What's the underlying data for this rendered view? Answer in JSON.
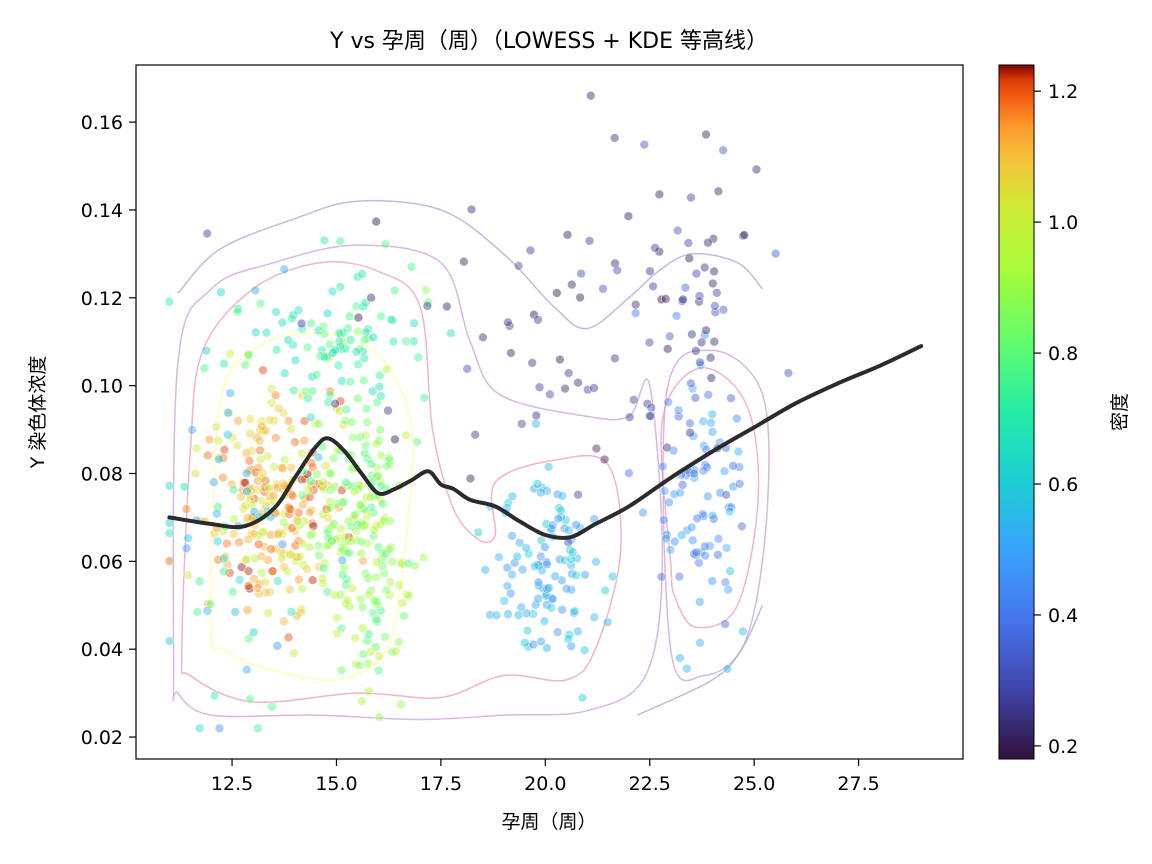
{
  "chart_data": {
    "type": "scatter",
    "title": "Y vs 孕周（周）（LOWESS + KDE 等高线）",
    "xlabel": "孕周（周）",
    "ylabel": "Y 染色体浓度",
    "xlim": [
      10.2,
      30.0
    ],
    "ylim": [
      0.015,
      0.173
    ],
    "x_ticks": [
      12.5,
      15.0,
      17.5,
      20.0,
      22.5,
      25.0,
      27.5
    ],
    "x_tick_labels": [
      "12.5",
      "15.0",
      "17.5",
      "20.0",
      "22.5",
      "25.0",
      "27.5"
    ],
    "y_ticks": [
      0.02,
      0.04,
      0.06,
      0.08,
      0.1,
      0.12,
      0.14,
      0.16
    ],
    "y_tick_labels": [
      "0.02",
      "0.04",
      "0.06",
      "0.08",
      "0.10",
      "0.12",
      "0.14",
      "0.16"
    ],
    "colorbar": {
      "label": "密度",
      "range": [
        0.18,
        1.24
      ],
      "ticks": [
        0.2,
        0.4,
        0.6,
        0.8,
        1.0,
        1.2
      ],
      "tick_labels": [
        "0.2",
        "0.4",
        "0.6",
        "0.8",
        "1.0",
        "1.2"
      ],
      "colormap": "turbo"
    },
    "clusters": [
      {
        "x_center": 13.5,
        "y_center": 0.072,
        "x_spread": 1.1,
        "y_spread": 0.017,
        "count": 240,
        "density": [
          0.95,
          1.24
        ]
      },
      {
        "x_center": 15.6,
        "y_center": 0.066,
        "x_spread": 0.8,
        "y_spread": 0.022,
        "count": 200,
        "density": [
          0.75,
          1.0
        ]
      },
      {
        "x_center": 15.0,
        "y_center": 0.11,
        "x_spread": 1.4,
        "y_spread": 0.012,
        "count": 90,
        "density": [
          0.62,
          0.82
        ]
      },
      {
        "x_center": 20.0,
        "y_center": 0.058,
        "x_spread": 0.9,
        "y_spread": 0.015,
        "count": 110,
        "density": [
          0.45,
          0.62
        ]
      },
      {
        "x_center": 23.8,
        "y_center": 0.075,
        "x_spread": 0.8,
        "y_spread": 0.02,
        "count": 90,
        "density": [
          0.35,
          0.55
        ]
      },
      {
        "x_center": 12.5,
        "y_center": 0.07,
        "x_spread": 1.2,
        "y_spread": 0.035,
        "count": 60,
        "density": [
          0.45,
          0.8
        ]
      },
      {
        "x_center": 19.5,
        "y_center": 0.11,
        "x_spread": 3.5,
        "y_spread": 0.025,
        "count": 60,
        "density": [
          0.18,
          0.3
        ]
      },
      {
        "x_center": 23.8,
        "y_center": 0.12,
        "x_spread": 1.0,
        "y_spread": 0.03,
        "count": 50,
        "density": [
          0.2,
          0.35
        ]
      }
    ],
    "lowess": {
      "x": [
        11.0,
        12.0,
        12.8,
        13.5,
        14.0,
        14.5,
        14.8,
        15.2,
        15.6,
        16.0,
        16.4,
        16.8,
        17.2,
        17.5,
        17.8,
        18.2,
        18.8,
        19.4,
        20.0,
        20.6,
        21.2,
        22.0,
        23.0,
        24.0,
        25.0,
        26.0,
        27.0,
        28.0,
        29.0
      ],
      "y": [
        0.07,
        0.0685,
        0.068,
        0.072,
        0.079,
        0.086,
        0.088,
        0.085,
        0.08,
        0.0755,
        0.0765,
        0.0785,
        0.0805,
        0.0775,
        0.0765,
        0.074,
        0.0725,
        0.069,
        0.066,
        0.0655,
        0.0685,
        0.0725,
        0.079,
        0.085,
        0.0905,
        0.096,
        0.1005,
        0.1045,
        0.109
      ]
    },
    "kde_levels": [
      {
        "color": "#ffff99",
        "shapes": [
          [
            [
              12.0,
              0.045
            ],
            [
              12.2,
              0.095
            ],
            [
              13.0,
              0.108
            ],
            [
              14.5,
              0.112
            ],
            [
              16.0,
              0.107
            ],
            [
              16.8,
              0.09
            ],
            [
              16.6,
              0.06
            ],
            [
              16.2,
              0.04
            ],
            [
              15.0,
              0.033
            ],
            [
              13.2,
              0.036
            ],
            [
              12.3,
              0.04
            ]
          ]
        ]
      },
      {
        "color": "#ee99bb",
        "shapes": [
          [
            [
              11.3,
              0.04
            ],
            [
              11.5,
              0.085
            ],
            [
              11.8,
              0.108
            ],
            [
              13.0,
              0.122
            ],
            [
              14.6,
              0.128
            ],
            [
              16.0,
              0.126
            ],
            [
              17.0,
              0.118
            ],
            [
              17.3,
              0.09
            ],
            [
              17.8,
              0.072
            ],
            [
              18.4,
              0.065
            ],
            [
              18.8,
              0.066
            ],
            [
              18.8,
              0.078
            ],
            [
              20.2,
              0.083
            ],
            [
              21.5,
              0.082
            ],
            [
              21.8,
              0.062
            ],
            [
              21.2,
              0.04
            ],
            [
              20.5,
              0.033
            ],
            [
              19.0,
              0.034
            ],
            [
              17.5,
              0.029
            ],
            [
              15.5,
              0.03
            ],
            [
              13.0,
              0.028
            ],
            [
              11.5,
              0.034
            ]
          ],
          [
            [
              23.0,
              0.06
            ],
            [
              22.8,
              0.092
            ],
            [
              23.7,
              0.104
            ],
            [
              24.8,
              0.096
            ],
            [
              25.1,
              0.075
            ],
            [
              24.6,
              0.05
            ],
            [
              23.6,
              0.045
            ],
            [
              23.1,
              0.052
            ]
          ]
        ]
      },
      {
        "color": "#c9a0d8",
        "shapes": [
          [
            [
              11.1,
              0.035
            ],
            [
              11.2,
              0.105
            ],
            [
              12.0,
              0.122
            ],
            [
              13.5,
              0.128
            ],
            [
              15.5,
              0.132
            ],
            [
              17.5,
              0.128
            ],
            [
              18.2,
              0.11
            ],
            [
              18.9,
              0.098
            ],
            [
              21.0,
              0.093
            ],
            [
              22.0,
              0.093
            ],
            [
              22.5,
              0.1
            ],
            [
              22.8,
              0.06
            ],
            [
              22.4,
              0.034
            ],
            [
              21.0,
              0.026
            ],
            [
              19.0,
              0.025
            ],
            [
              17.0,
              0.024
            ],
            [
              14.5,
              0.025
            ],
            [
              12.0,
              0.025
            ],
            [
              11.2,
              0.03
            ]
          ],
          [
            [
              23.0,
              0.04
            ],
            [
              22.9,
              0.098
            ],
            [
              24.0,
              0.108
            ],
            [
              25.2,
              0.098
            ],
            [
              25.3,
              0.07
            ],
            [
              24.8,
              0.042
            ],
            [
              23.8,
              0.034
            ]
          ]
        ]
      },
      {
        "color": "#a8a4d8",
        "shapes": [
          [
            [
              11.2,
              0.121
            ],
            [
              12.2,
              0.131
            ],
            [
              14.0,
              0.138
            ],
            [
              15.5,
              0.142
            ],
            [
              17.5,
              0.14
            ],
            [
              19.0,
              0.13
            ],
            [
              20.2,
              0.118
            ],
            [
              21.0,
              0.113
            ],
            [
              22.0,
              0.12
            ],
            [
              22.7,
              0.126
            ],
            [
              23.5,
              0.13
            ],
            [
              24.6,
              0.128
            ],
            [
              25.2,
              0.122
            ]
          ],
          [
            [
              22.2,
              0.025
            ],
            [
              24.0,
              0.033
            ],
            [
              24.7,
              0.04
            ],
            [
              25.2,
              0.05
            ]
          ]
        ]
      }
    ]
  }
}
